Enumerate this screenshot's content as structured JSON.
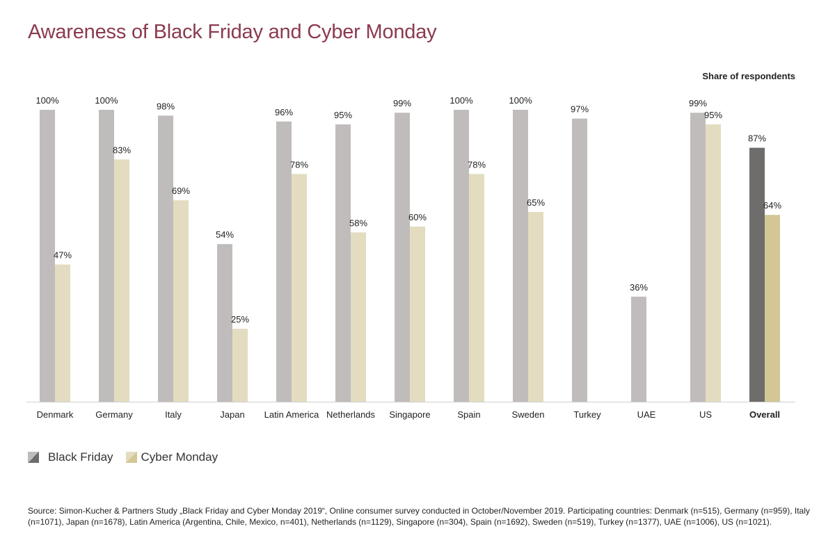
{
  "title": "Awareness of Black Friday and Cyber Monday",
  "unit_label": "Share of respondents",
  "legend": {
    "black_friday": "Black Friday",
    "cyber_monday": "Cyber Monday"
  },
  "source": "Source: Simon-Kucher & Partners Study „Black Friday and Cyber Monday 2019“, Online consumer survey conducted in October/November 2019. Participating countries: Denmark (n=515), Germany (n=959), Italy (n=1071), Japan (n=1678), Latin America (Argentina, Chile, Mexico, n=401), Netherlands (n=1129), Singapore (n=304), Spain (n=1692), Sweden (n=519), Turkey (n=1377), UAE (n=1006), US (n=1021).",
  "colors": {
    "title": "#8b3a4e",
    "black_friday": "#c0bcbb",
    "cyber_monday": "#e3dcc0",
    "black_friday_overall": "#6e6d6c",
    "cyber_monday_overall": "#d3c796"
  },
  "chart_data": {
    "type": "bar",
    "categories": [
      "Denmark",
      "Germany",
      "Italy",
      "Japan",
      "Latin America",
      "Netherlands",
      "Singapore",
      "Spain",
      "Sweden",
      "Turkey",
      "UAE",
      "US",
      "Overall"
    ],
    "series": [
      {
        "name": "Black Friday",
        "values": [
          100,
          100,
          98,
          54,
          96,
          95,
          99,
          100,
          100,
          97,
          36,
          99,
          87
        ],
        "labels": [
          "100%",
          "100%",
          "98%",
          "54%",
          "96%",
          "95%",
          "99%",
          "100%",
          "100%",
          "97%",
          "36%",
          "99%",
          "87%"
        ]
      },
      {
        "name": "Cyber Monday",
        "values": [
          47,
          83,
          69,
          25,
          78,
          58,
          60,
          78,
          65,
          null,
          null,
          95,
          64
        ],
        "labels": [
          "47%",
          "83%",
          "69%",
          "25%",
          "78%",
          "58%",
          "60%",
          "78%",
          "65%",
          null,
          null,
          "95%",
          "64%"
        ]
      }
    ],
    "highlight_category": "Overall",
    "ylim": [
      0,
      100
    ],
    "grid": false,
    "legend_position": "bottom-left"
  }
}
